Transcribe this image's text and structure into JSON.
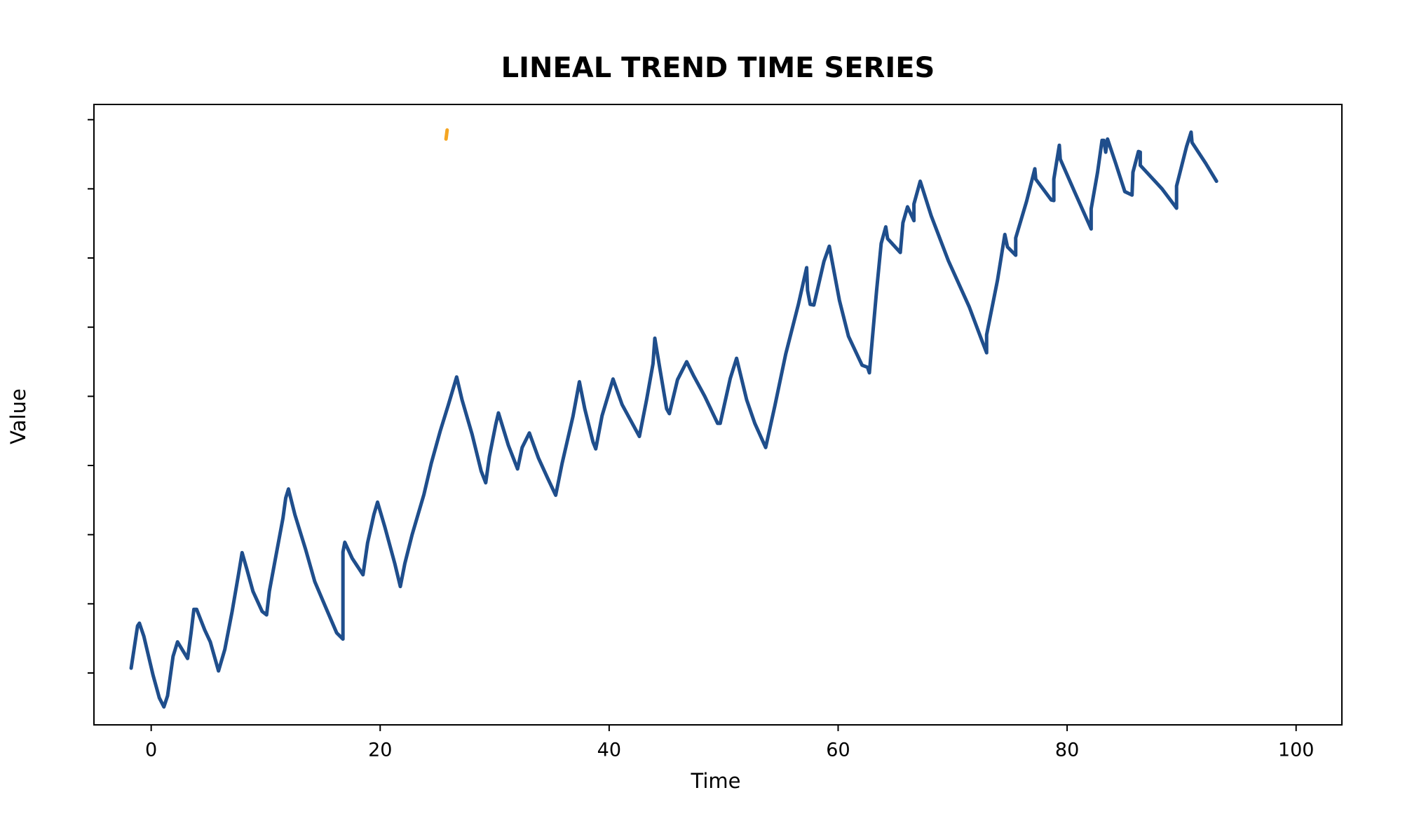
{
  "chart_data": {
    "type": "line",
    "title": "LINEAL TREND TIME SERIES",
    "x_label": "Time",
    "y_label": "Value",
    "xlim": [
      -5,
      104
    ],
    "xticks": [
      0,
      20,
      40,
      60,
      80,
      100
    ],
    "ylim": [
      -0.75,
      8.22
    ],
    "yticks": [
      0,
      1,
      2,
      3,
      4,
      5,
      6,
      7,
      8
    ],
    "grid": false,
    "series": [
      {
        "color": "#1f4e8c",
        "x": [
          -1.75,
          -1.19,
          -1.03,
          -0.64,
          0.16,
          0.71,
          1.11,
          1.43,
          1.91,
          2.3,
          3.18,
          3.49,
          3.73,
          3.97,
          4.68,
          5.16,
          5.88,
          6.43,
          7.07,
          7.62,
          7.94,
          8.34,
          8.89,
          9.69,
          10.08,
          10.32,
          10.88,
          11.51,
          11.75,
          11.99,
          12.55,
          13.5,
          14.29,
          15.24,
          16.2,
          16.75,
          16.75,
          16.91,
          17.55,
          18.5,
          18.9,
          19.45,
          19.77,
          20.41,
          21.28,
          21.76,
          22.15,
          22.79,
          23.82,
          24.46,
          25.25,
          25.96,
          26.68,
          27.15,
          28.03,
          28.82,
          29.22,
          29.54,
          30.09,
          30.33,
          31.2,
          32.0,
          32.4,
          33.03,
          33.82,
          34.62,
          35.33,
          35.89,
          36.84,
          37.4,
          37.87,
          38.59,
          38.83,
          39.38,
          40.34,
          41.13,
          42.64,
          43.27,
          43.83,
          43.99,
          44.46,
          45.02,
          45.26,
          45.97,
          46.77,
          47.4,
          48.35,
          49.47,
          49.7,
          50.58,
          51.13,
          52.01,
          52.72,
          53.67,
          54.47,
          55.42,
          56.53,
          57.25,
          57.33,
          57.56,
          57.88,
          58.76,
          59.23,
          60.11,
          60.9,
          62.09,
          62.57,
          62.73,
          62.88,
          63.36,
          63.76,
          64.16,
          64.32,
          65.43,
          65.66,
          66.06,
          66.62,
          66.62,
          67.17,
          68.13,
          69.63,
          71.46,
          72.57,
          72.97,
          72.97,
          73.92,
          74.56,
          74.79,
          75.51,
          75.51,
          76.46,
          77.18,
          77.26,
          78.61,
          78.84,
          78.84,
          79.32,
          79.4,
          80.67,
          82.1,
          82.1,
          82.66,
          83.05,
          83.21,
          83.37,
          83.53,
          84.24,
          85.04,
          85.67,
          85.75,
          86.23,
          86.39,
          86.39,
          88.29,
          89.56,
          89.56,
          90.43,
          90.83,
          90.91,
          92.1,
          93.05
        ],
        "values": [
          0.07,
          0.68,
          0.72,
          0.53,
          -0.03,
          -0.36,
          -0.49,
          -0.33,
          0.24,
          0.45,
          0.21,
          0.59,
          0.92,
          0.92,
          0.62,
          0.45,
          0.03,
          0.34,
          0.89,
          1.42,
          1.74,
          1.51,
          1.18,
          0.89,
          0.84,
          1.18,
          1.68,
          2.24,
          2.53,
          2.66,
          2.29,
          1.78,
          1.32,
          0.95,
          0.58,
          0.49,
          1.75,
          1.89,
          1.66,
          1.42,
          1.88,
          2.29,
          2.47,
          2.11,
          1.58,
          1.25,
          1.58,
          2.0,
          2.58,
          3.03,
          3.5,
          3.88,
          4.28,
          3.95,
          3.45,
          2.92,
          2.75,
          3.13,
          3.59,
          3.76,
          3.29,
          2.95,
          3.26,
          3.47,
          3.11,
          2.82,
          2.57,
          3.03,
          3.71,
          4.21,
          3.82,
          3.34,
          3.24,
          3.72,
          4.25,
          3.88,
          3.42,
          3.95,
          4.47,
          4.84,
          4.37,
          3.82,
          3.75,
          4.24,
          4.5,
          4.29,
          4.0,
          3.61,
          3.61,
          4.26,
          4.55,
          3.95,
          3.61,
          3.26,
          3.86,
          4.61,
          5.33,
          5.86,
          5.53,
          5.33,
          5.32,
          5.95,
          6.17,
          5.39,
          4.87,
          4.45,
          4.42,
          4.34,
          4.63,
          5.53,
          6.21,
          6.45,
          6.28,
          6.08,
          6.51,
          6.74,
          6.54,
          6.78,
          7.11,
          6.61,
          5.96,
          5.29,
          4.8,
          4.63,
          4.89,
          5.68,
          6.34,
          6.16,
          6.04,
          6.29,
          6.82,
          7.29,
          7.14,
          6.84,
          6.83,
          7.14,
          7.63,
          7.43,
          6.95,
          6.42,
          6.71,
          7.24,
          7.7,
          7.7,
          7.53,
          7.72,
          7.37,
          6.96,
          6.91,
          7.24,
          7.54,
          7.53,
          7.34,
          7.0,
          6.72,
          7.04,
          7.61,
          7.82,
          7.67,
          7.37,
          7.11
        ]
      },
      {
        "color": "#f5a623",
        "x": [
          25.75,
          25.85
        ],
        "values": [
          7.72,
          7.85
        ]
      }
    ]
  }
}
